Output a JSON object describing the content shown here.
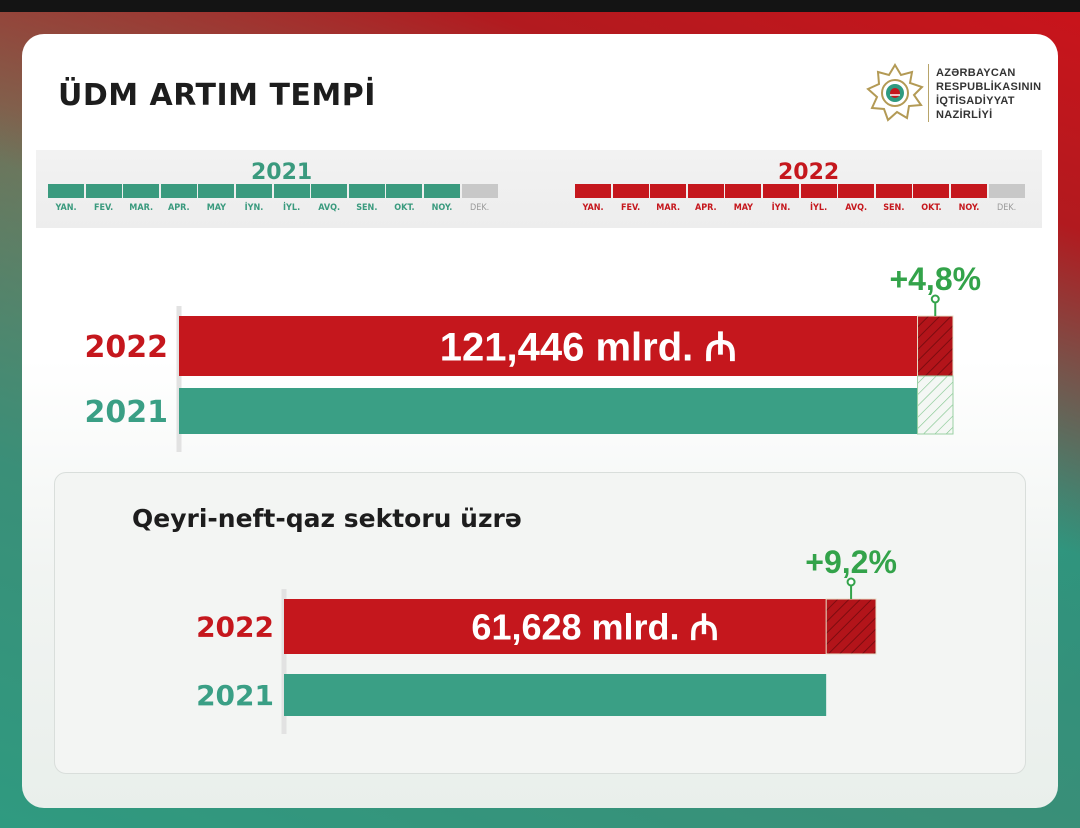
{
  "title": "ÜDM ARTIM TEMPİ",
  "ministry": {
    "lines": [
      "AZƏRBAYCAN",
      "RESPUBLİKASININ",
      "İQTİSADİYYAT",
      "NAZİRLİYİ"
    ]
  },
  "timeline": {
    "years": [
      {
        "label": "2021",
        "color": "#3a9a7e"
      },
      {
        "label": "2022",
        "color": "#c5171d"
      }
    ],
    "months": [
      "YAN.",
      "FEV.",
      "MAR.",
      "APR.",
      "MAY",
      "İYN.",
      "İYL.",
      "AVQ.",
      "SEN.",
      "OKT.",
      "NOY.",
      "DEK."
    ],
    "months_covered": 11,
    "inactive_color": "#c8c8c8"
  },
  "subtitle": "Qeyri-neft-qaz sektoru üzrə",
  "colors": {
    "red": "#c5171d",
    "green": "#3a9f85",
    "growth": "#33a34a"
  },
  "chart_data": [
    {
      "type": "bar",
      "orientation": "horizontal",
      "categories": [
        "2022",
        "2021"
      ],
      "values": [
        121.446,
        115.88
      ],
      "value_labels": [
        "121,446 mlrd. ₼",
        ""
      ],
      "growth_label": "+4,8%"
    },
    {
      "type": "bar",
      "orientation": "horizontal",
      "categories": [
        "2022",
        "2021"
      ],
      "values": [
        61.628,
        56.44
      ],
      "value_labels": [
        "61,628 mlrd. ₼",
        ""
      ],
      "growth_label": "+9,2%"
    }
  ]
}
